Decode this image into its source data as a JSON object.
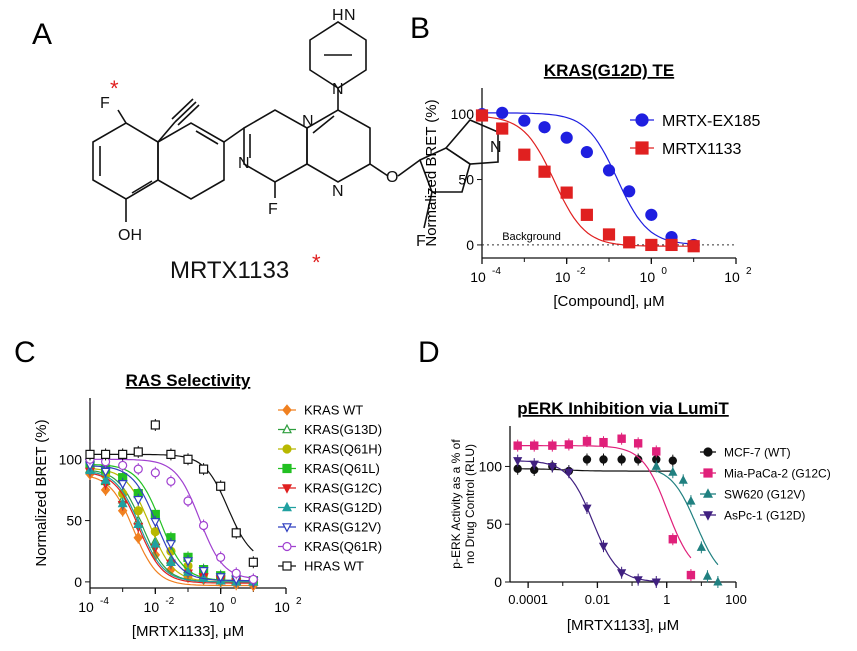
{
  "panels": {
    "a": "A",
    "b": "B",
    "c": "C",
    "d": "D"
  },
  "structure": {
    "compound_name": "MRTX1133",
    "atom_F_top": "F",
    "atom_F_mid": "F",
    "atom_F_ring": "F",
    "atom_OH": "OH",
    "atom_O": "O",
    "atom_N_core": "N",
    "atom_N_pyr": "N",
    "atom_N_pyr2": "N",
    "atom_N_bicyclic": "N",
    "atom_NH": "H",
    "atom_NH_N": "N",
    "atom_N_pyrrolizidine": "N",
    "star1": "*",
    "star2": "*",
    "colors": {
      "star": "#e02020"
    }
  },
  "chart_data": [
    {
      "id": "B",
      "type": "scatter",
      "title": "KRAS(G12D) TE",
      "xlabel": "[Compound], μM",
      "ylabel": "Normalized BRET (%)",
      "xscale": "log",
      "xlim": [
        0.0001,
        100
      ],
      "ylim": [
        -10,
        120
      ],
      "yticks": [
        0,
        50,
        100
      ],
      "xtick_base": [
        "10",
        "10",
        "10",
        "10"
      ],
      "xtick_exp": [
        "-4",
        "-2",
        "0",
        "2"
      ],
      "xtick_values": [
        0.0001,
        0.01,
        1,
        100
      ],
      "background_label": "Background",
      "background_value": 0,
      "legend_position": "top-right",
      "series": [
        {
          "name": "MRTX-EX185",
          "color": "#1f1fe0",
          "marker": "circle",
          "x": [
            0.0001,
            0.0003,
            0.001,
            0.003,
            0.01,
            0.03,
            0.1,
            0.3,
            1,
            3,
            10
          ],
          "y": [
            100,
            101,
            95,
            90,
            82,
            71,
            57,
            41,
            23,
            6,
            0
          ]
        },
        {
          "name": "MRTX1133",
          "color": "#e02020",
          "marker": "square",
          "x": [
            0.0001,
            0.0003,
            0.001,
            0.003,
            0.01,
            0.03,
            0.1,
            0.3,
            1,
            3,
            10
          ],
          "y": [
            99,
            89,
            69,
            56,
            40,
            23,
            8,
            2,
            0,
            0,
            -1
          ]
        }
      ]
    },
    {
      "id": "C",
      "type": "scatter",
      "title": "RAS Selectivity",
      "xlabel": "[MRTX1133], μM",
      "ylabel": "Normalized BRET (%)",
      "xscale": "log",
      "xlim": [
        0.0001,
        100
      ],
      "ylim": [
        -5,
        150
      ],
      "yticks": [
        0,
        50,
        100
      ],
      "xtick_base": [
        "10",
        "10",
        "10",
        "10"
      ],
      "xtick_exp": [
        "-4",
        "-2",
        "0",
        "2"
      ],
      "xtick_values": [
        0.0001,
        0.01,
        1,
        100
      ],
      "legend_position": "right",
      "x": [
        0.0001,
        0.0003,
        0.001,
        0.003,
        0.01,
        0.03,
        0.1,
        0.3,
        1,
        3,
        10
      ],
      "series": [
        {
          "name": "KRAS WT",
          "color": "#f08020",
          "marker": "diamond",
          "filled": true,
          "y": [
            88,
            75,
            58,
            36,
            22,
            10,
            4,
            2,
            0,
            -2,
            -3
          ]
        },
        {
          "name": "KRAS(G13D)",
          "color": "#2e9e3e",
          "marker": "triangle",
          "filled": false,
          "y": [
            92,
            82,
            67,
            50,
            33,
            18,
            10,
            5,
            2,
            1,
            0
          ]
        },
        {
          "name": "KRAS(Q61H)",
          "color": "#b8b800",
          "marker": "circle",
          "filled": true,
          "y": [
            93,
            87,
            72,
            58,
            41,
            25,
            13,
            6,
            3,
            1,
            0
          ]
        },
        {
          "name": "KRAS(Q61L)",
          "color": "#22c022",
          "marker": "square",
          "filled": true,
          "y": [
            96,
            92,
            85,
            72,
            55,
            36,
            20,
            10,
            5,
            2,
            1
          ]
        },
        {
          "name": "KRAS(G12C)",
          "color": "#e02020",
          "marker": "triangle-down",
          "filled": true,
          "y": [
            90,
            80,
            63,
            45,
            28,
            15,
            7,
            4,
            2,
            0,
            -1
          ]
        },
        {
          "name": "KRAS(G12D)",
          "color": "#20a0a0",
          "marker": "triangle",
          "filled": true,
          "y": [
            91,
            83,
            64,
            47,
            31,
            16,
            8,
            3,
            1,
            0,
            0
          ]
        },
        {
          "name": "KRAS(G12V)",
          "color": "#3040c0",
          "marker": "triangle-down",
          "filled": false,
          "y": [
            95,
            90,
            80,
            67,
            49,
            31,
            17,
            9,
            4,
            2,
            1
          ]
        },
        {
          "name": "KRAS(Q61R)",
          "color": "#a040d0",
          "marker": "circle",
          "filled": false,
          "y": [
            100,
            98,
            95,
            92,
            89,
            82,
            66,
            46,
            20,
            7,
            2
          ]
        },
        {
          "name": "HRAS WT",
          "color": "#111111",
          "marker": "square",
          "filled": false,
          "y": [
            104,
            104,
            104,
            106,
            128,
            104,
            100,
            92,
            78,
            40,
            16
          ]
        }
      ]
    },
    {
      "id": "D",
      "type": "scatter",
      "title": "pERK Inhibition via LumiT",
      "xlabel": "[MRTX1133], μM",
      "ylabel_line1": "p-ERK Activity as a % of",
      "ylabel_line2": "no Drug Control (RLU)",
      "xscale": "log",
      "xlim": [
        3e-05,
        100
      ],
      "ylim": [
        0,
        135
      ],
      "yticks": [
        0,
        50,
        100
      ],
      "xticks": [
        "0.0001",
        "0.01",
        "1",
        "100"
      ],
      "xtick_values": [
        0.0001,
        0.01,
        1,
        100
      ],
      "legend_position": "right",
      "series": [
        {
          "name": "MCF-7 (WT)",
          "color": "#111111",
          "marker": "circle",
          "filled": true,
          "x": [
            5e-05,
            0.00015,
            0.0005,
            0.0015,
            0.005,
            0.015,
            0.05,
            0.15,
            0.5,
            1.5
          ],
          "y": [
            98,
            97,
            100,
            96,
            106,
            106,
            106,
            106,
            106,
            105
          ]
        },
        {
          "name": "Mia-PaCa-2 (G12C)",
          "color": "#e0207a",
          "marker": "square",
          "filled": true,
          "x": [
            5e-05,
            0.00015,
            0.0005,
            0.0015,
            0.005,
            0.015,
            0.05,
            0.15,
            0.5,
            1.5,
            5
          ],
          "y": [
            118,
            118,
            118,
            119,
            122,
            121,
            124,
            120,
            113,
            37,
            6
          ]
        },
        {
          "name": "SW620 (G12V)",
          "color": "#208080",
          "marker": "triangle",
          "filled": true,
          "x": [
            0.5,
            1.5,
            3,
            5,
            10,
            15,
            30
          ],
          "y": [
            100,
            95,
            88,
            70,
            30,
            5,
            0
          ]
        },
        {
          "name": "AsPc-1 (G12D)",
          "color": "#402080",
          "marker": "triangle-down",
          "filled": true,
          "x": [
            5e-05,
            0.00015,
            0.0005,
            0.0015,
            0.005,
            0.015,
            0.05,
            0.15,
            0.5
          ],
          "y": [
            105,
            102,
            100,
            95,
            64,
            31,
            8,
            2,
            0
          ]
        }
      ]
    }
  ]
}
